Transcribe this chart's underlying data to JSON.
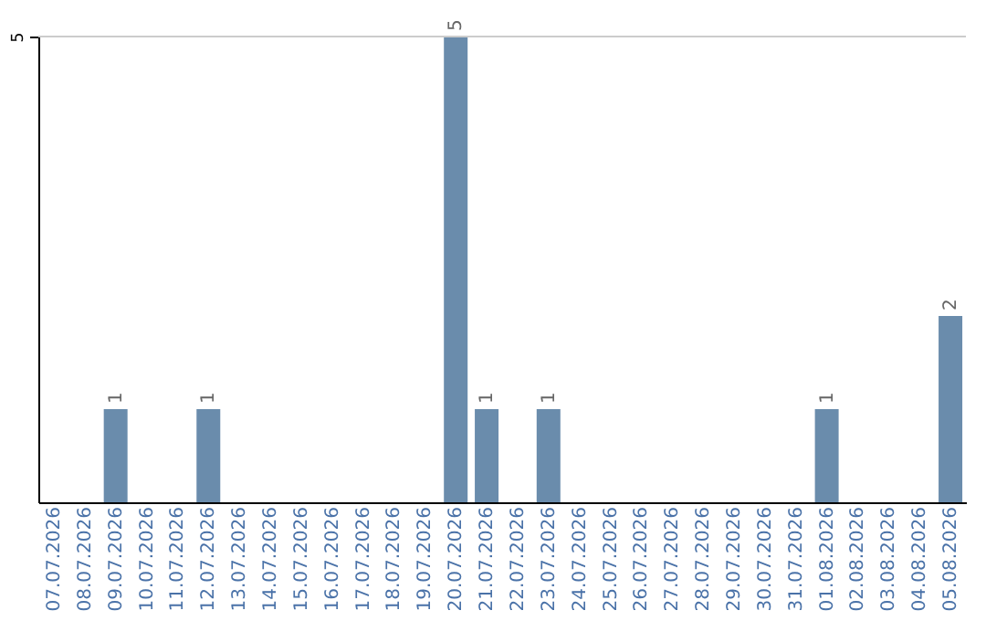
{
  "chart_data": {
    "type": "bar",
    "categories": [
      "07.07.2026",
      "08.07.2026",
      "09.07.2026",
      "10.07.2026",
      "11.07.2026",
      "12.07.2026",
      "13.07.2026",
      "14.07.2026",
      "15.07.2026",
      "16.07.2026",
      "17.07.2026",
      "18.07.2026",
      "19.07.2026",
      "20.07.2026",
      "21.07.2026",
      "22.07.2026",
      "23.07.2026",
      "24.07.2026",
      "25.07.2026",
      "26.07.2026",
      "27.07.2026",
      "28.07.2026",
      "29.07.2026",
      "30.07.2026",
      "31.07.2026",
      "01.08.2026",
      "02.08.2026",
      "03.08.2026",
      "04.08.2026",
      "05.08.2026"
    ],
    "values": [
      0,
      0,
      1,
      0,
      0,
      1,
      0,
      0,
      0,
      0,
      0,
      0,
      0,
      5,
      1,
      0,
      1,
      0,
      0,
      0,
      0,
      0,
      0,
      0,
      0,
      1,
      0,
      0,
      0,
      2
    ],
    "value_labels": [
      null,
      null,
      "1",
      null,
      null,
      "1",
      null,
      null,
      null,
      null,
      null,
      null,
      null,
      "5",
      "1",
      null,
      "1",
      null,
      null,
      null,
      null,
      null,
      null,
      null,
      null,
      "1",
      null,
      null,
      null,
      "2"
    ],
    "color": "#6a8cac",
    "ylim": [
      0,
      5
    ],
    "yticks": [
      5
    ],
    "ref_lines": [
      {
        "axis": "y",
        "value": 5,
        "color": "#cccccc"
      }
    ]
  }
}
